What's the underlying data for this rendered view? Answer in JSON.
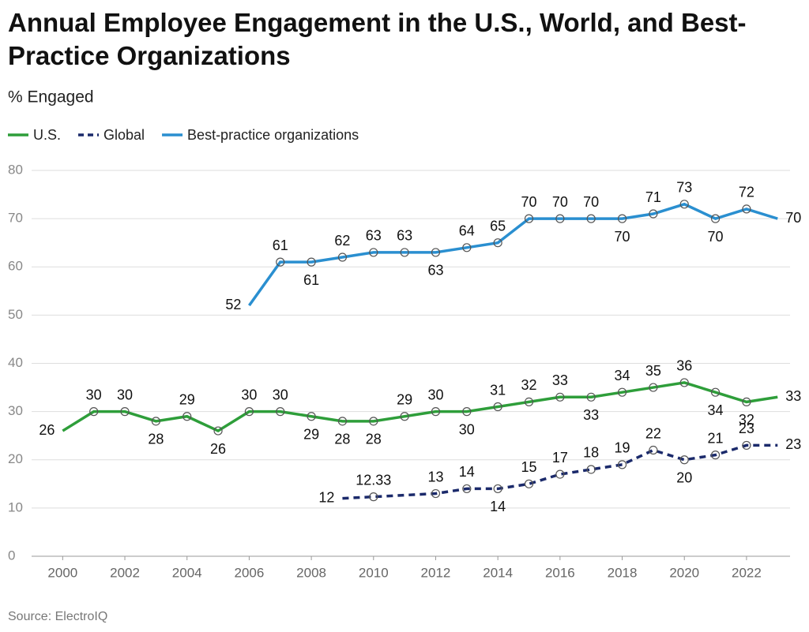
{
  "chart_data": {
    "type": "line",
    "title": "Annual Employee Engagement in the U.S., World, and Best-Practice Organizations",
    "subtitle": "% Engaged",
    "source": "Source: ElectroIQ",
    "xlim": [
      1999,
      2023.4
    ],
    "xticks": [
      2000,
      2002,
      2004,
      2006,
      2008,
      2010,
      2012,
      2014,
      2016,
      2018,
      2020,
      2022
    ],
    "ylim": [
      0,
      80
    ],
    "yticks": [
      0,
      10,
      20,
      30,
      40,
      50,
      60,
      70,
      80
    ],
    "grid": true,
    "series": [
      {
        "name": "U.S.",
        "color": "#2e9e3a",
        "dashed": false,
        "x": [
          2000,
          2001,
          2002,
          2003,
          2004,
          2005,
          2006,
          2007,
          2008,
          2009,
          2010,
          2011,
          2012,
          2013,
          2014,
          2015,
          2016,
          2017,
          2018,
          2019,
          2020,
          2021,
          2022,
          2023
        ],
        "values": [
          26,
          30,
          30,
          28,
          29,
          26,
          30,
          30,
          29,
          28,
          28,
          29,
          30,
          30,
          31,
          32,
          33,
          33,
          34,
          35,
          36,
          34,
          32,
          33
        ]
      },
      {
        "name": "Global",
        "color": "#1b2a6b",
        "dashed": true,
        "x": [
          2009,
          2010,
          2012,
          2013,
          2014,
          2015,
          2016,
          2017,
          2018,
          2019,
          2020,
          2021,
          2022,
          2023
        ],
        "values": [
          12,
          12.33,
          13,
          14,
          14,
          15,
          17,
          18,
          19,
          22,
          20,
          21,
          23,
          23
        ]
      },
      {
        "name": "Best-practice organizations",
        "color": "#2a8fd0",
        "dashed": false,
        "x": [
          2006,
          2007,
          2008,
          2009,
          2010,
          2011,
          2012,
          2013,
          2014,
          2015,
          2016,
          2017,
          2018,
          2019,
          2020,
          2021,
          2022,
          2023
        ],
        "values": [
          52,
          61,
          61,
          62,
          63,
          63,
          63,
          64,
          65,
          70,
          70,
          70,
          70,
          71,
          73,
          70,
          72,
          70
        ]
      }
    ]
  }
}
